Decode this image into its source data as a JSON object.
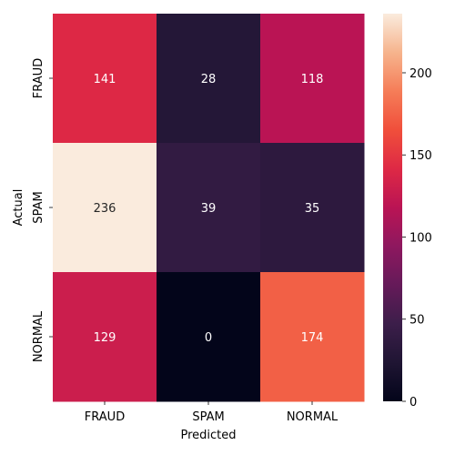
{
  "chart_data": {
    "type": "heatmap",
    "title": "",
    "xlabel": "Predicted",
    "ylabel": "Actual",
    "x_categories": [
      "FRAUD",
      "SPAM",
      "NORMAL"
    ],
    "y_categories": [
      "FRAUD",
      "SPAM",
      "NORMAL"
    ],
    "values": [
      [
        141,
        28,
        118
      ],
      [
        236,
        39,
        35
      ],
      [
        129,
        0,
        174
      ]
    ],
    "colorbar": {
      "min": 0,
      "max": 236,
      "ticks": [
        0,
        50,
        100,
        150,
        200
      ],
      "colormap": "rocket"
    }
  }
}
